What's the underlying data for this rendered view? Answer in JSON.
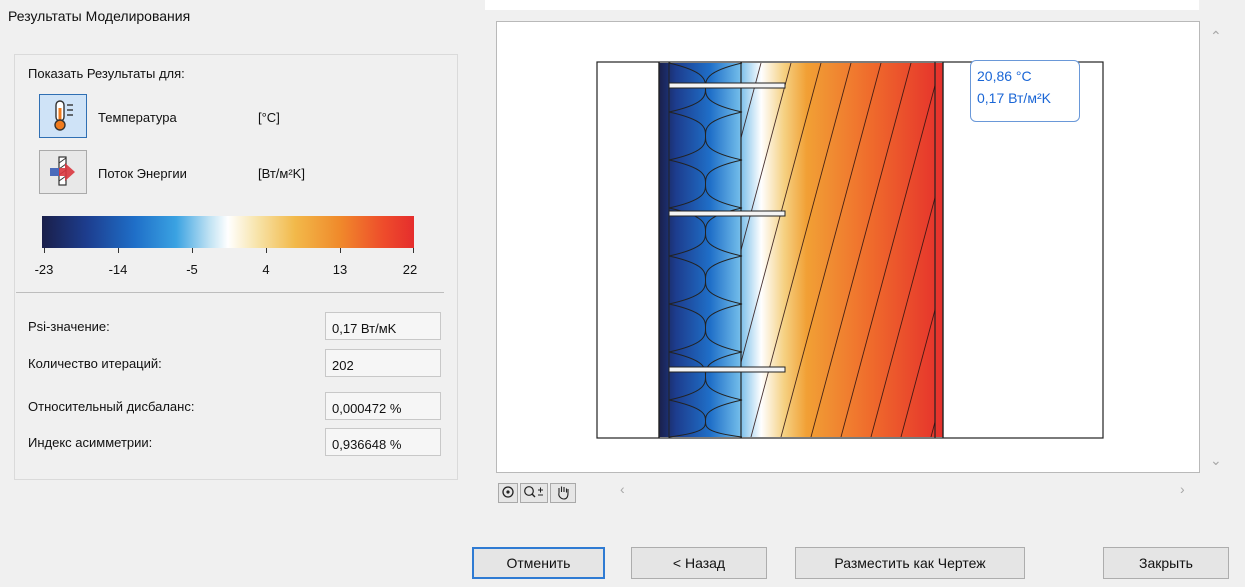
{
  "title": "Результаты Моделирования",
  "show_results_label": "Показать Результаты для:",
  "modes": [
    {
      "label": "Температура",
      "unit": "[°C]"
    },
    {
      "label": "Поток Энергии",
      "unit": "[Вт/м²K]"
    }
  ],
  "legend": {
    "ticks": [
      "-23",
      "-14",
      "-5",
      "4",
      "13",
      "22"
    ]
  },
  "properties": [
    {
      "label": "Psi-значение:",
      "value": "0,17 Вт/мK"
    },
    {
      "label": "Количество итераций:",
      "value": "202"
    },
    {
      "label": "Относительный дисбаланс:",
      "value": "0,000472 %"
    },
    {
      "label": "Индекс асимметрии:",
      "value": "0,936648 %"
    }
  ],
  "tooltip": {
    "line1": "20,86 °C",
    "line2": "0,17 Вт/м²K"
  },
  "buttons": {
    "cancel": "Отменить",
    "back": "< Назад",
    "place": "Разместить как Чертеж",
    "close": "Закрыть"
  },
  "colors": {
    "accent": "#2f7bd3",
    "tooltip_text": "#1a66d6"
  },
  "icons": [
    "thermometer-icon",
    "energy-flow-icon",
    "zoom-fit-icon",
    "zoom-icon",
    "pan-hand-icon"
  ]
}
